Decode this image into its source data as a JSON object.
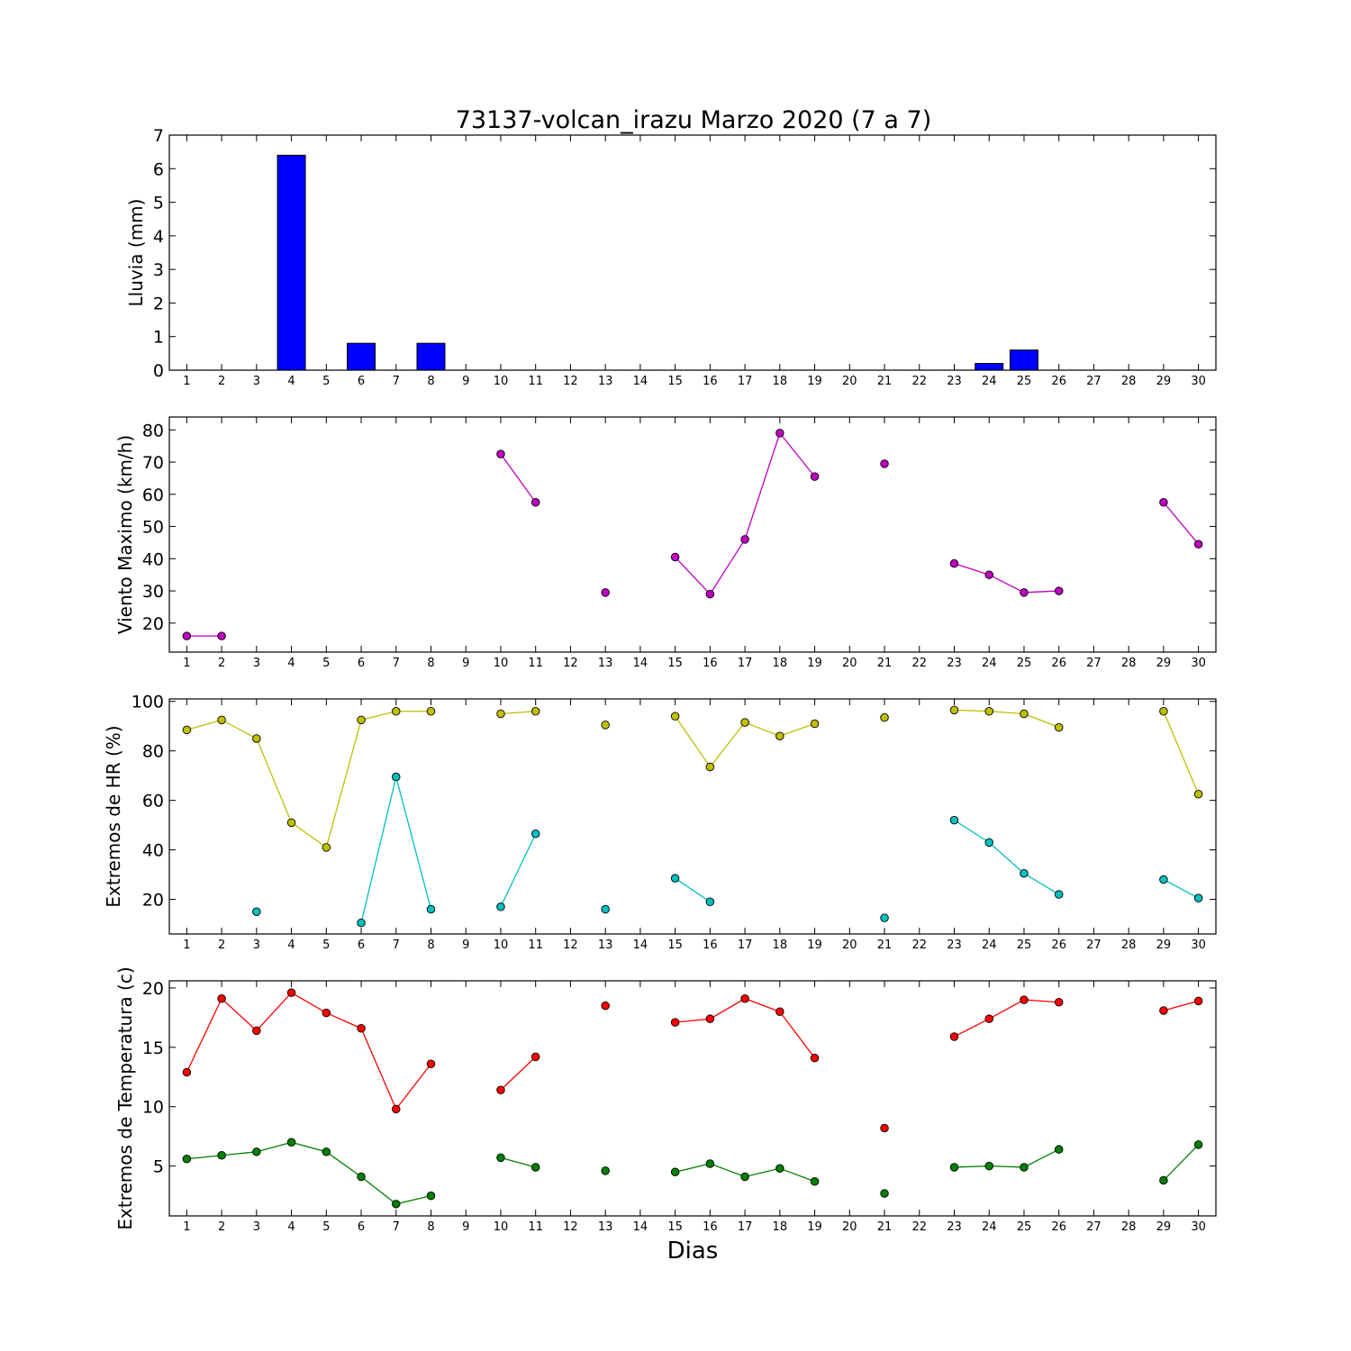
{
  "figure": {
    "title": "73137-volcan_irazu Marzo 2020  (7 a 7)",
    "xlabel": "Dias"
  },
  "chart_data": [
    {
      "type": "bar",
      "ylabel": "Lluvia (mm)",
      "ylim": [
        0,
        7
      ],
      "yticks": [
        0,
        1,
        2,
        3,
        4,
        5,
        6,
        7
      ],
      "x_ticks": [
        1,
        2,
        3,
        4,
        5,
        6,
        7,
        8,
        9,
        10,
        11,
        12,
        13,
        14,
        15,
        16,
        17,
        18,
        19,
        20,
        21,
        22,
        23,
        24,
        25,
        26,
        27,
        28,
        29,
        30
      ],
      "xlim": [
        0.5,
        30.5
      ],
      "grid": false,
      "series": [
        {
          "color": "#0000ff",
          "x": [
            1,
            2,
            3,
            4,
            5,
            6,
            7,
            8,
            9,
            10,
            11,
            12,
            13,
            14,
            15,
            16,
            17,
            18,
            19,
            20,
            21,
            22,
            23,
            24,
            25,
            26,
            27,
            28,
            29,
            30
          ],
          "values": [
            0,
            0,
            0,
            6.4,
            null,
            0.8,
            0,
            0.8,
            0,
            0,
            0,
            0,
            0,
            0,
            0,
            0,
            0,
            0,
            0,
            0,
            0,
            0,
            0,
            0.2,
            0.6,
            0,
            0,
            0,
            0,
            0
          ]
        }
      ]
    },
    {
      "type": "line",
      "ylabel": "Viento Maximo (km/h)",
      "ylim": [
        11,
        84
      ],
      "yticks": [
        20,
        30,
        40,
        50,
        60,
        70,
        80
      ],
      "x_ticks": [
        1,
        2,
        3,
        4,
        5,
        6,
        7,
        8,
        9,
        10,
        11,
        12,
        13,
        14,
        15,
        16,
        17,
        18,
        19,
        20,
        21,
        22,
        23,
        24,
        25,
        26,
        27,
        28,
        29,
        30
      ],
      "xlim": [
        0.5,
        30.5
      ],
      "grid": false,
      "series": [
        {
          "color": "#bf00bf",
          "x": [
            1,
            2,
            3,
            4,
            5,
            6,
            7,
            8,
            9,
            10,
            11,
            12,
            13,
            14,
            15,
            16,
            17,
            18,
            19,
            20,
            21,
            22,
            23,
            24,
            25,
            26,
            27,
            28,
            29,
            30
          ],
          "values": [
            16,
            16,
            null,
            null,
            null,
            null,
            null,
            null,
            null,
            72.5,
            57.5,
            null,
            29.5,
            null,
            40.5,
            29,
            46,
            79,
            65.5,
            null,
            69.5,
            null,
            38.5,
            35,
            29.5,
            30,
            null,
            null,
            57.5,
            44.5
          ]
        }
      ]
    },
    {
      "type": "line",
      "ylabel": "Extremos de HR (%)",
      "ylim": [
        6,
        101
      ],
      "yticks": [
        20,
        40,
        60,
        80,
        100
      ],
      "x_ticks": [
        1,
        2,
        3,
        4,
        5,
        6,
        7,
        8,
        9,
        10,
        11,
        12,
        13,
        14,
        15,
        16,
        17,
        18,
        19,
        20,
        21,
        22,
        23,
        24,
        25,
        26,
        27,
        28,
        29,
        30
      ],
      "xlim": [
        0.5,
        30.5
      ],
      "grid": false,
      "series": [
        {
          "color": "#bfbf00",
          "x": [
            1,
            2,
            3,
            4,
            5,
            6,
            7,
            8,
            9,
            10,
            11,
            12,
            13,
            14,
            15,
            16,
            17,
            18,
            19,
            20,
            21,
            22,
            23,
            24,
            25,
            26,
            27,
            28,
            29,
            30
          ],
          "values": [
            88.5,
            92.5,
            85,
            51,
            41,
            92.5,
            96,
            96,
            null,
            95,
            96,
            null,
            90.5,
            null,
            94,
            73.5,
            91.5,
            86,
            91,
            null,
            93.5,
            null,
            96.5,
            96,
            95,
            89.5,
            null,
            null,
            96,
            62.5
          ]
        },
        {
          "color": "#00bfbf",
          "x": [
            1,
            2,
            3,
            4,
            5,
            6,
            7,
            8,
            9,
            10,
            11,
            12,
            13,
            14,
            15,
            16,
            17,
            18,
            19,
            20,
            21,
            22,
            23,
            24,
            25,
            26,
            27,
            28,
            29,
            30
          ],
          "values": [
            null,
            null,
            15,
            null,
            null,
            10.5,
            69.5,
            16,
            null,
            17,
            46.5,
            null,
            16,
            null,
            28.5,
            19,
            null,
            null,
            null,
            null,
            12.5,
            null,
            52,
            43,
            30.5,
            22,
            null,
            null,
            28,
            20.5
          ]
        }
      ]
    },
    {
      "type": "line",
      "ylabel": "Extremos de Temperatura (c)",
      "ylim": [
        0.8,
        20.6
      ],
      "yticks": [
        5,
        10,
        15,
        20
      ],
      "x_ticks": [
        1,
        2,
        3,
        4,
        5,
        6,
        7,
        8,
        9,
        10,
        11,
        12,
        13,
        14,
        15,
        16,
        17,
        18,
        19,
        20,
        21,
        22,
        23,
        24,
        25,
        26,
        27,
        28,
        29,
        30
      ],
      "xlim": [
        0.5,
        30.5
      ],
      "grid": false,
      "series": [
        {
          "color": "#ff0000",
          "x": [
            1,
            2,
            3,
            4,
            5,
            6,
            7,
            8,
            9,
            10,
            11,
            12,
            13,
            14,
            15,
            16,
            17,
            18,
            19,
            20,
            21,
            22,
            23,
            24,
            25,
            26,
            27,
            28,
            29,
            30
          ],
          "values": [
            12.9,
            19.1,
            16.4,
            19.6,
            17.9,
            16.6,
            9.8,
            13.6,
            null,
            11.4,
            14.2,
            null,
            18.5,
            null,
            17.1,
            17.4,
            19.1,
            18.0,
            14.1,
            null,
            8.2,
            null,
            15.9,
            17.4,
            19.0,
            18.8,
            null,
            null,
            18.1,
            18.9
          ]
        },
        {
          "color": "#008000",
          "x": [
            1,
            2,
            3,
            4,
            5,
            6,
            7,
            8,
            9,
            10,
            11,
            12,
            13,
            14,
            15,
            16,
            17,
            18,
            19,
            20,
            21,
            22,
            23,
            24,
            25,
            26,
            27,
            28,
            29,
            30
          ],
          "values": [
            5.6,
            5.9,
            6.2,
            7.0,
            6.2,
            4.1,
            1.8,
            2.5,
            null,
            5.7,
            4.9,
            null,
            4.6,
            null,
            4.5,
            5.2,
            4.1,
            4.8,
            3.7,
            null,
            2.7,
            null,
            4.9,
            5.0,
            4.9,
            6.4,
            null,
            null,
            3.8,
            6.8
          ]
        }
      ]
    }
  ]
}
